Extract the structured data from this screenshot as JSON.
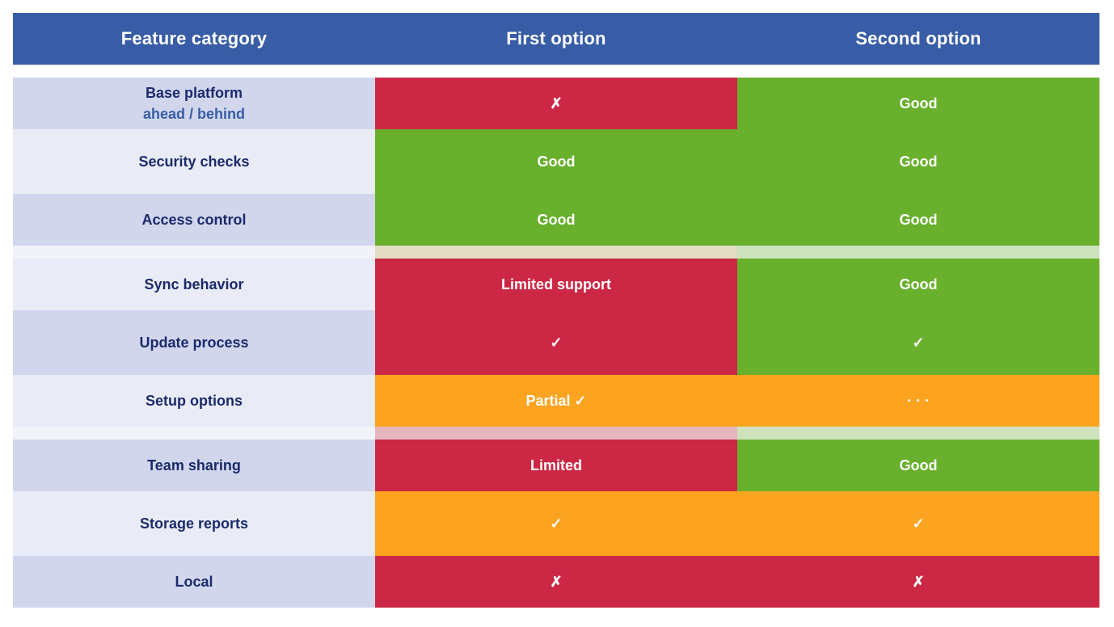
{
  "table": {
    "headers": [
      "Feature category",
      "First option",
      "Second option"
    ],
    "rows": [
      {
        "label": "Base platform",
        "label_detail": "ahead / behind",
        "col1": "✗",
        "col2": "Good"
      },
      {
        "label": "Security checks",
        "col1": "Good",
        "col2": "Good"
      },
      {
        "label": "Access control",
        "col1": "Good",
        "col2": "Good"
      },
      {
        "label": "Sync behavior",
        "col1": "Limited support",
        "col2": "Good"
      },
      {
        "label": "Update process",
        "col1": "✓",
        "col2": "✓"
      },
      {
        "label": "Setup options",
        "col1": "Partial ✓",
        "col2": "· · ·"
      },
      {
        "label": "Team sharing",
        "col1": "Limited",
        "col2": "Good"
      },
      {
        "label": "Storage reports",
        "col1": "✓",
        "col2": "✓"
      },
      {
        "label": "Local",
        "col1": "✗",
        "col2": "✗"
      }
    ]
  },
  "colors": {
    "header": "#385da6",
    "label_alt": "#d1d6ec",
    "label_plain": "#e9ecf6",
    "red": "#cc2745",
    "green": "#69b02d",
    "orange": "#fca320"
  }
}
